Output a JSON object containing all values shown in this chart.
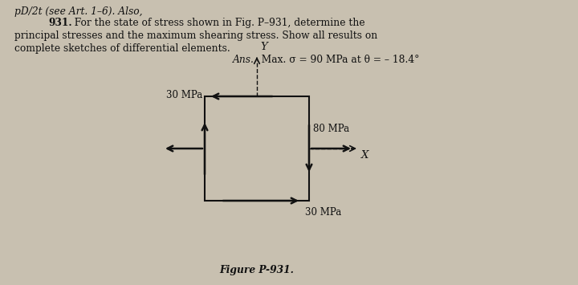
{
  "bg_color": "#c8c0b0",
  "text_color": "#111111",
  "line0": "pD/2t (see Art. 1–6). Also,",
  "line1_num": "931.",
  "line1_rest": "  For the state of stress shown in Fig. P–931, determine the",
  "line2": "principal stresses and the maximum shearing stress. Show all results on",
  "line3": "complete sketches of differential elements.",
  "line4_ans": "Ans.",
  "line4_rest": "  Max. σ = 90 MPa at θ = – 18.4°",
  "fig_caption": "Figure P-931.",
  "label_30_top": "30 MPa",
  "label_80": "80 MPa",
  "label_30_bot": "30 MPa",
  "label_X": "X",
  "label_Y": "Y"
}
